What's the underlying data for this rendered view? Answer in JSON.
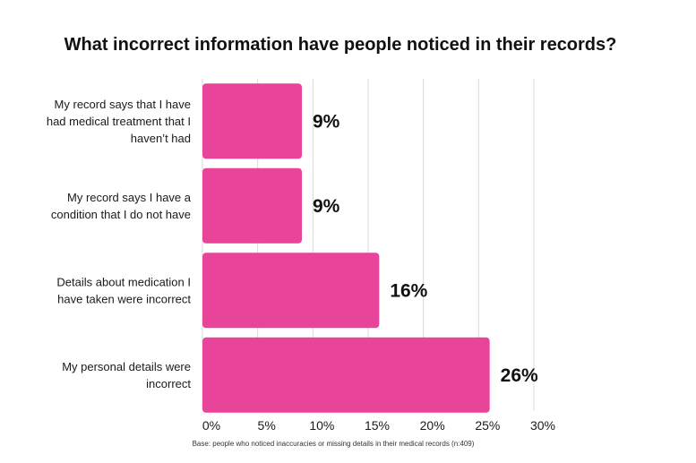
{
  "chart_data": {
    "type": "bar",
    "orientation": "horizontal",
    "title": "What incorrect information have people noticed in their records?",
    "categories": [
      [
        "My record says that I have",
        "had medical treatment that I",
        "haven’t had"
      ],
      [
        "My record says I have a",
        "condition that I do not have"
      ],
      [
        "Details about medication I",
        "have taken were incorrect"
      ],
      [
        "My personal details were",
        "incorrect"
      ]
    ],
    "values": [
      9,
      9,
      16,
      26
    ],
    "value_labels": [
      "9%",
      "9%",
      "16%",
      "26%"
    ],
    "xlim": [
      0,
      30
    ],
    "x_ticks": [
      0,
      5,
      10,
      15,
      20,
      25,
      30
    ],
    "x_tick_labels": [
      "0%",
      "5%",
      "10%",
      "15%",
      "20%",
      "25%",
      "30%"
    ],
    "xlabel": "",
    "ylabel": "",
    "grid": "vertical",
    "legend": "none",
    "footnote": "Base: people who noticed inaccuracies or missing details in their medical records (n:409)",
    "colors": {
      "bar": "#e8449a",
      "grid": "#d9d9d9",
      "text": "#111111"
    }
  }
}
